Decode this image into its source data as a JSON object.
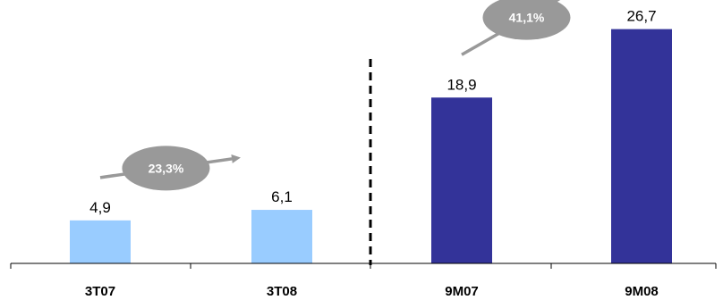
{
  "chart_data": {
    "type": "bar",
    "categories": [
      "3T07",
      "3T08",
      "9M07",
      "9M08"
    ],
    "values": [
      4.9,
      6.1,
      18.9,
      26.7
    ],
    "value_labels": [
      "4,9",
      "6,1",
      "18,9",
      "26,7"
    ],
    "ylim": [
      0,
      29
    ],
    "grid": false,
    "colors": [
      "#99ccff",
      "#99ccff",
      "#333399",
      "#333399"
    ],
    "growth_annotations": [
      {
        "label": "23,3%",
        "from": "3T07",
        "to": "3T08"
      },
      {
        "label": "41,1%",
        "from": "9M07",
        "to": "9M08"
      }
    ],
    "annotation_color": "#999999",
    "divider_style": "dashed"
  }
}
